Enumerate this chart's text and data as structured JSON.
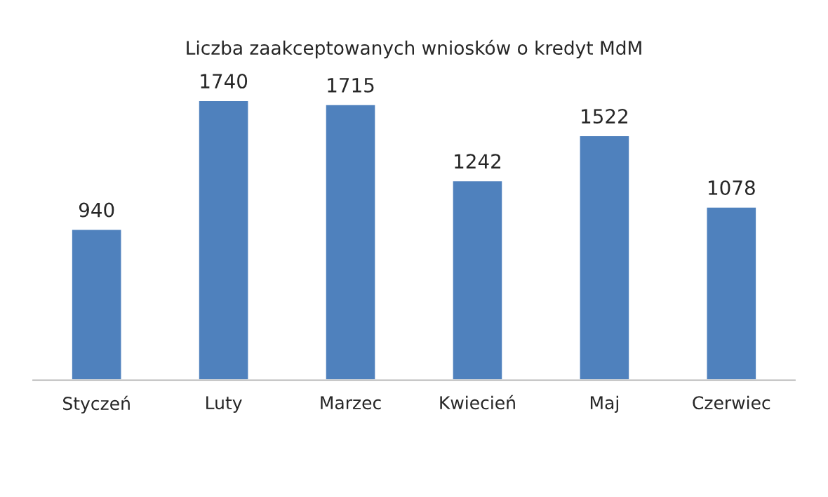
{
  "chart_data": {
    "type": "bar",
    "title": "Liczba zaakceptowanych wniosków o kredyt MdM",
    "categories": [
      "Styczeń",
      "Luty",
      "Marzec",
      "Kwiecień",
      "Maj",
      "Czerwiec"
    ],
    "values": [
      940,
      1740,
      1715,
      1242,
      1522,
      1078
    ],
    "color": "#4f81bd",
    "data_labels": true,
    "tick_labels": "x",
    "grid": false,
    "legend": false
  }
}
